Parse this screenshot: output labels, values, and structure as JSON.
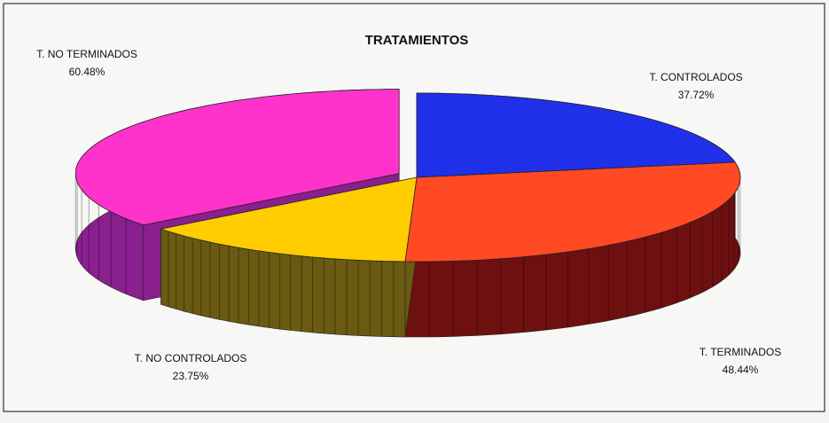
{
  "chart_data": {
    "type": "pie",
    "title": "TRATAMIENTOS",
    "categories": [
      "T. CONTROLADOS",
      "T. TERMINADOS",
      "T. NO CONTROLADOS",
      "T. NO TERMINADOS"
    ],
    "values": [
      37.72,
      48.44,
      23.75,
      60.48
    ],
    "value_labels": [
      "37.72%",
      "48.44%",
      "23.75%",
      "60.48%"
    ],
    "colors": [
      "#2030e8",
      "#ff4a24",
      "#ffcc00",
      "#ff33cc"
    ],
    "side_colors": [
      "#1a2090",
      "#6e1010",
      "#6a5a12",
      "#8a1f8e"
    ],
    "exploded": "T. NO TERMINADOS"
  }
}
